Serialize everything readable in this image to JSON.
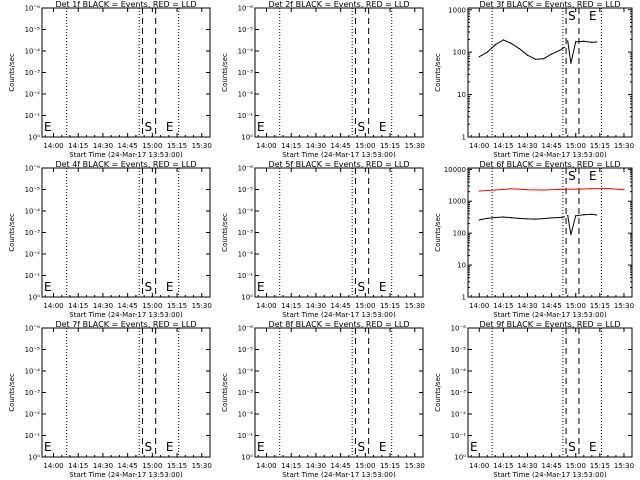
{
  "chart_data": [
    {
      "type": "line",
      "title": "Det 1f BLACK = Events, RED = LLD",
      "xlabel": "Start Time (24-Mar-17 13:53:00)",
      "ylabel": "Counts/sec",
      "xticks": [
        "14:00",
        "14:15",
        "14:30",
        "14:45",
        "15:00",
        "15:15",
        "15:30"
      ],
      "yscale": "log",
      "yticks": [
        "10⁰",
        "10⁻¹",
        "10⁻²",
        "10⁻³",
        "10⁻⁴",
        "10⁻⁵",
        "10⁻⁶"
      ],
      "ylim_exp": [
        -6,
        0
      ],
      "xlim": [
        "13:53",
        "15:35"
      ],
      "vlines_dotted": [
        "14:08",
        "14:52",
        "15:16"
      ],
      "vlines_dashed": [
        "14:54",
        "15:02"
      ],
      "markers": [
        {
          "text": "E",
          "at": "13:53"
        },
        {
          "text": "S",
          "at": "14:54"
        },
        {
          "text": "E",
          "at": "15:07"
        }
      ],
      "series": []
    },
    {
      "type": "line",
      "title": "Det 2f BLACK = Events, RED = LLD",
      "xlabel": "Start Time (24-Mar-17 13:53:00)",
      "ylabel": "Counts/sec",
      "xticks": [
        "14:00",
        "14:15",
        "14:30",
        "14:45",
        "15:00",
        "15:15",
        "15:30"
      ],
      "yscale": "log",
      "yticks": [
        "10⁰",
        "10⁻¹",
        "10⁻²",
        "10⁻³",
        "10⁻⁴",
        "10⁻⁵",
        "10⁻⁶"
      ],
      "ylim_exp": [
        -6,
        0
      ],
      "xlim": [
        "13:53",
        "15:35"
      ],
      "vlines_dotted": [
        "14:08",
        "14:52",
        "15:16"
      ],
      "vlines_dashed": [
        "14:54",
        "15:02"
      ],
      "markers": [
        {
          "text": "E",
          "at": "13:53"
        },
        {
          "text": "S",
          "at": "14:54"
        },
        {
          "text": "E",
          "at": "15:07"
        }
      ],
      "series": []
    },
    {
      "type": "line",
      "title": "Det 3f BLACK = Events, RED = LLD",
      "xlabel": "Start Time (24-Mar-17 13:53:00)",
      "ylabel": "Counts/sec",
      "xticks": [
        "14:00",
        "14:15",
        "14:30",
        "14:45",
        "15:00",
        "15:15",
        "15:30"
      ],
      "yscale": "log",
      "yticks": [
        "1",
        "10",
        "100",
        "1000"
      ],
      "ylim": [
        1,
        1100
      ],
      "xlim": [
        "13:53",
        "15:35"
      ],
      "vlines_dotted": [
        "14:08",
        "14:52",
        "15:16"
      ],
      "vlines_dashed": [
        "14:54",
        "15:02"
      ],
      "markers": [
        {
          "text": "S",
          "at": "14:54"
        },
        {
          "text": "E",
          "at": "15:07"
        }
      ],
      "series": [
        {
          "color": "#000000",
          "segments": [
            {
              "x": [
                "14:00",
                "14:05",
                "14:10",
                "14:15",
                "14:20",
                "14:25",
                "14:30",
                "14:35",
                "14:40",
                "14:45",
                "14:50",
                "14:53"
              ],
              "y": [
                78,
                100,
                150,
                195,
                160,
                120,
                85,
                68,
                70,
                90,
                110,
                130
              ]
            },
            {
              "x": [
                "14:55",
                "14:57",
                "15:00",
                "15:05",
                "15:10",
                "15:13"
              ],
              "y": [
                185,
                55,
                175,
                180,
                170,
                175
              ]
            }
          ]
        }
      ]
    },
    {
      "type": "line",
      "title": "Det 4f BLACK = Events, RED = LLD",
      "xlabel": "Start Time (24-Mar-17 13:53:00)",
      "ylabel": "Counts/sec",
      "xticks": [
        "14:00",
        "14:15",
        "14:30",
        "14:45",
        "15:00",
        "15:15",
        "15:30"
      ],
      "yscale": "log",
      "yticks": [
        "10⁰",
        "10⁻¹",
        "10⁻²",
        "10⁻³",
        "10⁻⁴",
        "10⁻⁵",
        "10⁻⁶"
      ],
      "ylim_exp": [
        -6,
        0
      ],
      "xlim": [
        "13:53",
        "15:35"
      ],
      "vlines_dotted": [
        "14:08",
        "14:52",
        "15:16"
      ],
      "vlines_dashed": [
        "14:54",
        "15:02"
      ],
      "markers": [
        {
          "text": "E",
          "at": "13:53"
        },
        {
          "text": "S",
          "at": "14:54"
        },
        {
          "text": "E",
          "at": "15:07"
        }
      ],
      "series": []
    },
    {
      "type": "line",
      "title": "Det 5f BLACK = Events, RED = LLD",
      "xlabel": "Start Time (24-Mar-17 13:53:00)",
      "ylabel": "Counts/sec",
      "xticks": [
        "14:00",
        "14:15",
        "14:30",
        "14:45",
        "15:00",
        "15:15",
        "15:30"
      ],
      "yscale": "log",
      "yticks": [
        "10⁰",
        "10⁻¹",
        "10⁻²",
        "10⁻³",
        "10⁻⁴",
        "10⁻⁵",
        "10⁻⁶"
      ],
      "ylim_exp": [
        -6,
        0
      ],
      "xlim": [
        "13:53",
        "15:35"
      ],
      "vlines_dotted": [
        "14:08",
        "14:52",
        "15:16"
      ],
      "vlines_dashed": [
        "14:54",
        "15:02"
      ],
      "markers": [
        {
          "text": "E",
          "at": "13:53"
        },
        {
          "text": "S",
          "at": "14:54"
        },
        {
          "text": "E",
          "at": "15:07"
        }
      ],
      "series": []
    },
    {
      "type": "line",
      "title": "Det 6f BLACK = Events, RED = LLD",
      "xlabel": "Start Time (24-Mar-17 13:53:00)",
      "ylabel": "Counts/sec",
      "xticks": [
        "14:00",
        "14:15",
        "14:30",
        "14:45",
        "15:00",
        "15:15",
        "15:30"
      ],
      "yscale": "log",
      "yticks": [
        "1",
        "10",
        "100",
        "1000",
        "10000"
      ],
      "ylim": [
        1,
        11000
      ],
      "xlim": [
        "13:53",
        "15:35"
      ],
      "vlines_dotted": [
        "14:08",
        "14:52",
        "15:16"
      ],
      "vlines_dashed": [
        "14:54",
        "15:02"
      ],
      "markers": [
        {
          "text": "S",
          "at": "14:54"
        },
        {
          "text": "E",
          "at": "15:07"
        }
      ],
      "series": [
        {
          "color": "#ff0000",
          "segments": [
            {
              "x": [
                "14:00",
                "14:10",
                "14:20",
                "14:30",
                "14:40",
                "14:50",
                "15:00",
                "15:10",
                "15:20",
                "15:30"
              ],
              "y": [
                2100,
                2250,
                2450,
                2300,
                2250,
                2350,
                2400,
                2450,
                2500,
                2300
              ]
            }
          ]
        },
        {
          "color": "#000000",
          "segments": [
            {
              "x": [
                "14:00",
                "14:05",
                "14:10",
                "14:15",
                "14:20",
                "14:25",
                "14:30",
                "14:35",
                "14:40",
                "14:45",
                "14:50",
                "14:53"
              ],
              "y": [
                260,
                290,
                310,
                320,
                305,
                290,
                280,
                275,
                285,
                300,
                310,
                320
              ]
            },
            {
              "x": [
                "14:55",
                "14:57",
                "15:00",
                "15:05",
                "15:10",
                "15:13"
              ],
              "y": [
                360,
                90,
                350,
                380,
                390,
                370
              ]
            }
          ]
        }
      ]
    },
    {
      "type": "line",
      "title": "Det 7f BLACK = Events, RED = LLD",
      "xlabel": "Start Time (24-Mar-17 13:53:00)",
      "ylabel": "Counts/sec",
      "xticks": [
        "14:00",
        "14:15",
        "14:30",
        "14:45",
        "15:00",
        "15:15",
        "15:30"
      ],
      "yscale": "log",
      "yticks": [
        "10⁰",
        "10⁻¹",
        "10⁻²",
        "10⁻³",
        "10⁻⁴",
        "10⁻⁵",
        "10⁻⁶"
      ],
      "ylim_exp": [
        -6,
        0
      ],
      "xlim": [
        "13:53",
        "15:35"
      ],
      "vlines_dotted": [
        "14:08",
        "14:52",
        "15:16"
      ],
      "vlines_dashed": [
        "14:54",
        "15:02"
      ],
      "markers": [
        {
          "text": "E",
          "at": "13:53"
        },
        {
          "text": "S",
          "at": "14:54"
        },
        {
          "text": "E",
          "at": "15:07"
        }
      ],
      "series": []
    },
    {
      "type": "line",
      "title": "Det 8f BLACK = Events, RED = LLD",
      "xlabel": "Start Time (24-Mar-17 13:53:00)",
      "ylabel": "Counts/sec",
      "xticks": [
        "14:00",
        "14:15",
        "14:30",
        "14:45",
        "15:00",
        "15:15",
        "15:30"
      ],
      "yscale": "log",
      "yticks": [
        "10⁰",
        "10⁻¹",
        "10⁻²",
        "10⁻³",
        "10⁻⁴",
        "10⁻⁵",
        "10⁻⁶"
      ],
      "ylim_exp": [
        -6,
        0
      ],
      "xlim": [
        "13:53",
        "15:35"
      ],
      "vlines_dotted": [
        "14:08",
        "14:52",
        "15:16"
      ],
      "vlines_dashed": [
        "14:54",
        "15:02"
      ],
      "markers": [
        {
          "text": "E",
          "at": "13:53"
        },
        {
          "text": "S",
          "at": "14:54"
        },
        {
          "text": "E",
          "at": "15:07"
        }
      ],
      "series": []
    },
    {
      "type": "line",
      "title": "Det 9f BLACK = Events, RED = LLD",
      "xlabel": "Start Time (24-Mar-17 13:53:00)",
      "ylabel": "Counts/sec",
      "xticks": [
        "14:00",
        "14:15",
        "14:30",
        "14:45",
        "15:00",
        "15:15",
        "15:30"
      ],
      "yscale": "log",
      "yticks": [
        "10⁰",
        "10⁻¹",
        "10⁻²",
        "10⁻³",
        "10⁻⁴",
        "10⁻⁵",
        "10⁻⁶"
      ],
      "ylim_exp": [
        -6,
        0
      ],
      "xlim": [
        "13:53",
        "15:35"
      ],
      "vlines_dotted": [
        "14:08",
        "14:52",
        "15:16"
      ],
      "vlines_dashed": [
        "14:54",
        "15:02"
      ],
      "markers": [
        {
          "text": "E",
          "at": "13:53"
        },
        {
          "text": "S",
          "at": "14:54"
        },
        {
          "text": "E",
          "at": "15:07"
        }
      ],
      "series": []
    }
  ]
}
